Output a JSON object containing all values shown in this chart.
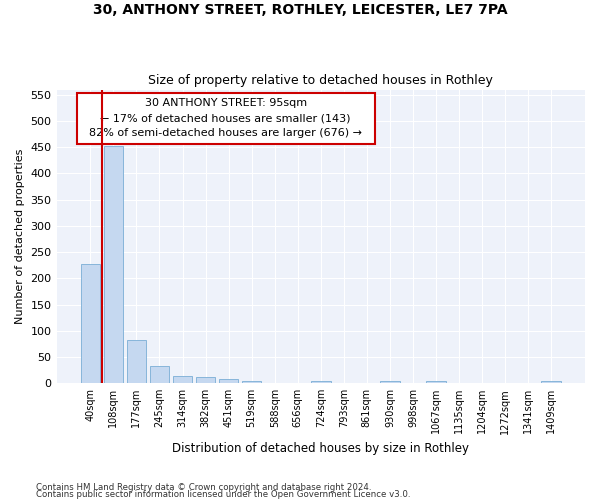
{
  "title_line1": "30, ANTHONY STREET, ROTHLEY, LEICESTER, LE7 7PA",
  "title_line2": "Size of property relative to detached houses in Rothley",
  "xlabel": "Distribution of detached houses by size in Rothley",
  "ylabel": "Number of detached properties",
  "footer_line1": "Contains HM Land Registry data © Crown copyright and database right 2024.",
  "footer_line2": "Contains public sector information licensed under the Open Government Licence v3.0.",
  "annotation_line1": "30 ANTHONY STREET: 95sqm",
  "annotation_line2": "← 17% of detached houses are smaller (143)",
  "annotation_line3": "82% of semi-detached houses are larger (676) →",
  "bar_color": "#c5d8f0",
  "bar_edge_color": "#7aaed6",
  "marker_line_color": "#cc0000",
  "annotation_box_edge_color": "#cc0000",
  "background_color": "#ffffff",
  "plot_bg_color": "#eef2fa",
  "grid_color": "#ffffff",
  "categories": [
    "40sqm",
    "108sqm",
    "177sqm",
    "245sqm",
    "314sqm",
    "382sqm",
    "451sqm",
    "519sqm",
    "588sqm",
    "656sqm",
    "724sqm",
    "793sqm",
    "861sqm",
    "930sqm",
    "998sqm",
    "1067sqm",
    "1135sqm",
    "1204sqm",
    "1272sqm",
    "1341sqm",
    "1409sqm"
  ],
  "values": [
    228,
    453,
    83,
    32,
    14,
    11,
    8,
    4,
    0,
    0,
    4,
    0,
    0,
    5,
    0,
    4,
    0,
    0,
    0,
    0,
    4
  ],
  "ylim": [
    0,
    560
  ],
  "yticks": [
    0,
    50,
    100,
    150,
    200,
    250,
    300,
    350,
    400,
    450,
    500,
    550
  ]
}
